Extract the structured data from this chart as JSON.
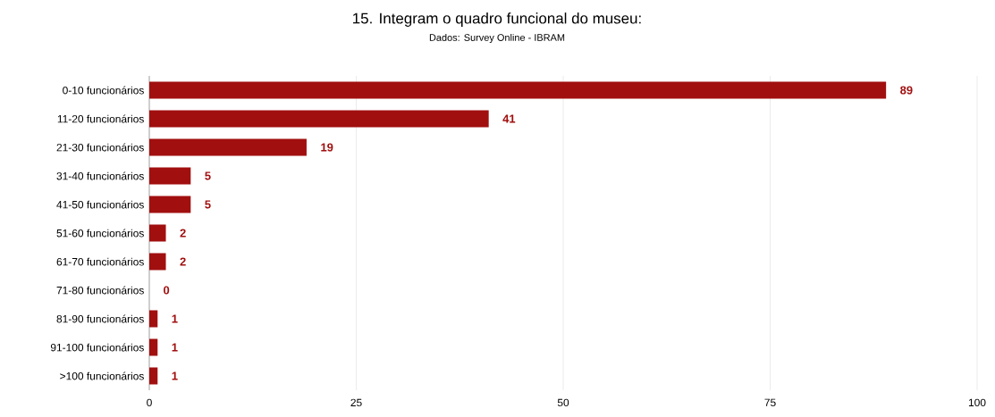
{
  "chart_data": {
    "type": "bar",
    "orientation": "horizontal",
    "title": "15. Integram o quadro funcional do museu:",
    "subtitle": "Dados: Survey Online - IBRAM",
    "categories": [
      "0-10 funcionários",
      "11-20 funcionários",
      "21-30 funcionários",
      "31-40 funcionários",
      "41-50 funcionários",
      "51-60 funcionários",
      "61-70 funcionários",
      "71-80 funcionários",
      "81-90 funcionários",
      "91-100 funcionários",
      ">100 funcionários"
    ],
    "values": [
      89,
      41,
      19,
      5,
      5,
      2,
      2,
      0,
      1,
      1,
      1
    ],
    "color": "#a10f0f",
    "data_labels": true,
    "grid": "x",
    "xlim": [
      0,
      100
    ],
    "xticks": [
      0,
      25,
      50,
      75,
      100
    ]
  }
}
